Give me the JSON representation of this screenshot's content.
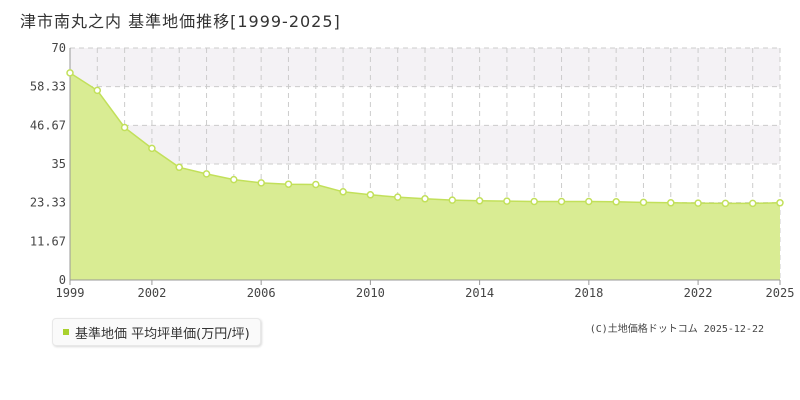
{
  "title": "津市南丸之内 基準地価推移[1999-2025]",
  "legend": {
    "label": "基準地価 平均坪単価(万円/坪)"
  },
  "copyright": "(C)土地価格ドットコム 2025-12-22",
  "colors": {
    "fill": "#d9ec93",
    "line": "#c2e05a",
    "point": "#c2e05a",
    "band": "#f4f2f5",
    "grid": "#cccccc",
    "axis": "#999999",
    "legend_swatch": "#a9d12e"
  },
  "chart_data": {
    "type": "area",
    "title": "津市南丸之内 基準地価推移[1999-2025]",
    "xlabel": "",
    "ylabel": "",
    "xlim": [
      1999,
      2025
    ],
    "ylim": [
      0,
      70
    ],
    "yticks": [
      "0",
      "11.67",
      "23.33",
      "35",
      "46.67",
      "58.33",
      "70"
    ],
    "xticks": [
      1999,
      2002,
      2006,
      2010,
      2014,
      2018,
      2022,
      2025
    ],
    "grid": true,
    "series": [
      {
        "name": "基準地価 平均坪単価(万円/坪)",
        "x": [
          1999,
          2000,
          2001,
          2002,
          2003,
          2004,
          2005,
          2006,
          2007,
          2008,
          2009,
          2010,
          2011,
          2012,
          2013,
          2014,
          2015,
          2016,
          2017,
          2018,
          2019,
          2020,
          2021,
          2022,
          2023,
          2024,
          2025
        ],
        "values": [
          62.5,
          57.2,
          46.0,
          39.7,
          34.0,
          32.0,
          30.3,
          29.3,
          28.9,
          28.8,
          26.6,
          25.7,
          25.0,
          24.5,
          24.1,
          23.9,
          23.8,
          23.7,
          23.7,
          23.7,
          23.6,
          23.4,
          23.3,
          23.2,
          23.1,
          23.1,
          23.3
        ]
      }
    ]
  }
}
